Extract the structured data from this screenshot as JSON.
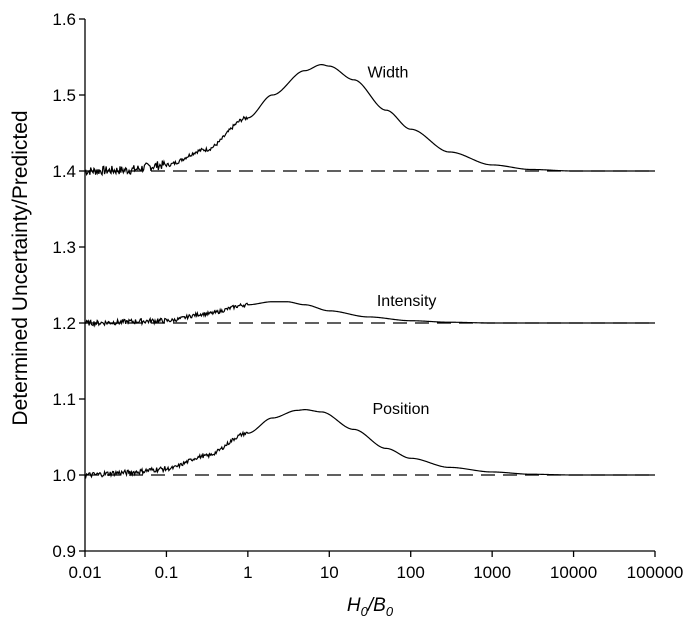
{
  "chart_data": {
    "type": "line",
    "xlabel": "H0/B0",
    "ylabel": "Determined Uncertainty/Predicted",
    "x_scale": "log",
    "xlim": [
      0.01,
      100000
    ],
    "ylim": [
      0.9,
      1.6
    ],
    "x_ticks": [
      "0.01",
      "0.1",
      "1",
      "10",
      "100",
      "1000",
      "10000",
      "100000"
    ],
    "y_ticks": [
      "0.9",
      "1.0",
      "1.1",
      "1.2",
      "1.3",
      "1.4",
      "1.5",
      "1.6"
    ],
    "grid": false,
    "series": [
      {
        "name": "Width",
        "baseline": 1.4,
        "x": [
          0.01,
          0.03,
          0.1,
          0.3,
          1,
          2,
          5,
          8,
          10,
          20,
          50,
          100,
          300,
          1000,
          3000,
          10000,
          100000
        ],
        "y": [
          1.4,
          1.401,
          1.408,
          1.428,
          1.47,
          1.5,
          1.532,
          1.54,
          1.538,
          1.52,
          1.48,
          1.455,
          1.425,
          1.408,
          1.402,
          1.4,
          1.4
        ]
      },
      {
        "name": "Intensity",
        "baseline": 1.2,
        "x": [
          0.01,
          0.1,
          0.3,
          1,
          2,
          3,
          5,
          10,
          30,
          100,
          300,
          1000,
          100000
        ],
        "y": [
          1.2,
          1.203,
          1.212,
          1.224,
          1.228,
          1.228,
          1.224,
          1.216,
          1.208,
          1.203,
          1.201,
          1.2,
          1.2
        ]
      },
      {
        "name": "Position",
        "baseline": 1.0,
        "x": [
          0.01,
          0.03,
          0.1,
          0.3,
          1,
          2,
          4,
          5,
          8,
          20,
          50,
          100,
          300,
          1000,
          3000,
          10000,
          100000
        ],
        "y": [
          1.0,
          1.003,
          1.008,
          1.025,
          1.055,
          1.075,
          1.085,
          1.086,
          1.083,
          1.06,
          1.035,
          1.022,
          1.01,
          1.004,
          1.001,
          1.0,
          1.0
        ]
      }
    ]
  }
}
